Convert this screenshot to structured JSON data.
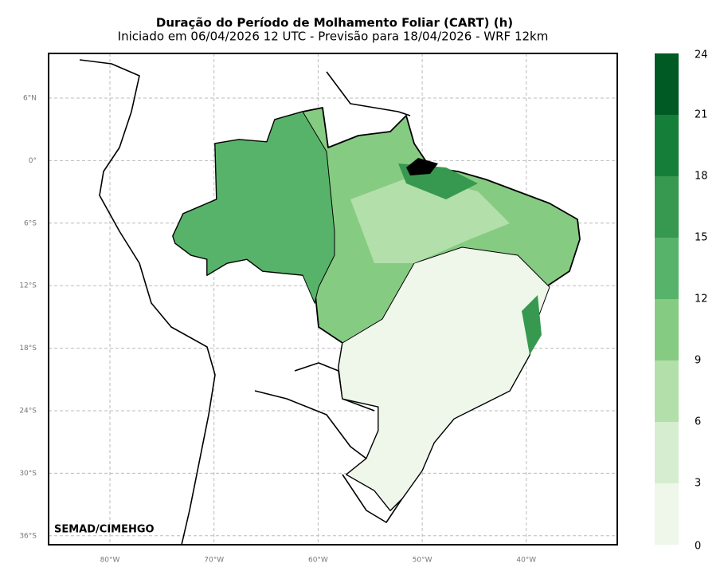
{
  "map": {
    "title": "Duração do Período de Molhamento Foliar (CART) (h)",
    "subtitle": "Iniciado em 06/04/2026 12 UTC - Previsão para 18/04/2026 - WRF 12km",
    "lat_labels": [
      "6°N",
      "0°",
      "6°S",
      "12°S",
      "18°S",
      "24°S",
      "30°S",
      "36°S"
    ],
    "lon_labels": [
      "80°W",
      "70°W",
      "60°W",
      "50°W",
      "40°W"
    ],
    "credit": "SEMAD/CIMEHGO",
    "colorbar": {
      "ticks": [
        0,
        3,
        6,
        9,
        12,
        15,
        18,
        21,
        24
      ],
      "colors": [
        "#eef7ea",
        "#d6eecf",
        "#b3dfaa",
        "#86cb82",
        "#58b36a",
        "#37994f",
        "#157f3a",
        "#005a24"
      ]
    }
  }
}
